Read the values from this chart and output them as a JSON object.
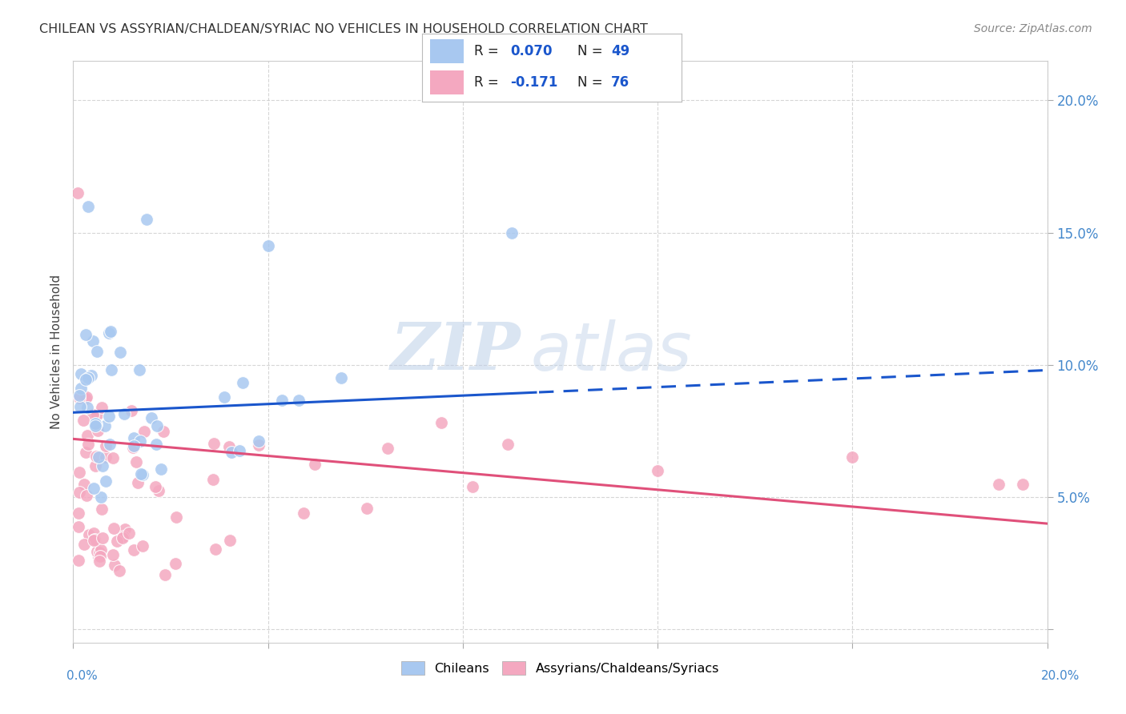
{
  "title": "CHILEAN VS ASSYRIAN/CHALDEAN/SYRIAC NO VEHICLES IN HOUSEHOLD CORRELATION CHART",
  "source": "Source: ZipAtlas.com",
  "ylabel": "No Vehicles in Household",
  "xlim": [
    0.0,
    0.2
  ],
  "ylim": [
    -0.005,
    0.215
  ],
  "yticks": [
    0.0,
    0.05,
    0.1,
    0.15,
    0.2
  ],
  "ytick_labels": [
    "",
    "5.0%",
    "10.0%",
    "15.0%",
    "20.0%"
  ],
  "chilean_R": 0.07,
  "chilean_N": 49,
  "assyrian_R": -0.171,
  "assyrian_N": 76,
  "chilean_color": "#A8C8F0",
  "assyrian_color": "#F4A8C0",
  "trend_chilean_color": "#1A56CC",
  "trend_assyrian_color": "#E0507A",
  "background_color": "#FFFFFF",
  "grid_color": "#CCCCCC",
  "watermark_zip": "ZIP",
  "watermark_atlas": "atlas",
  "trend_blue_start_y": 0.082,
  "trend_blue_end_y": 0.098,
  "trend_pink_start_y": 0.072,
  "trend_pink_end_y": 0.04,
  "trend_split_x": 0.095
}
